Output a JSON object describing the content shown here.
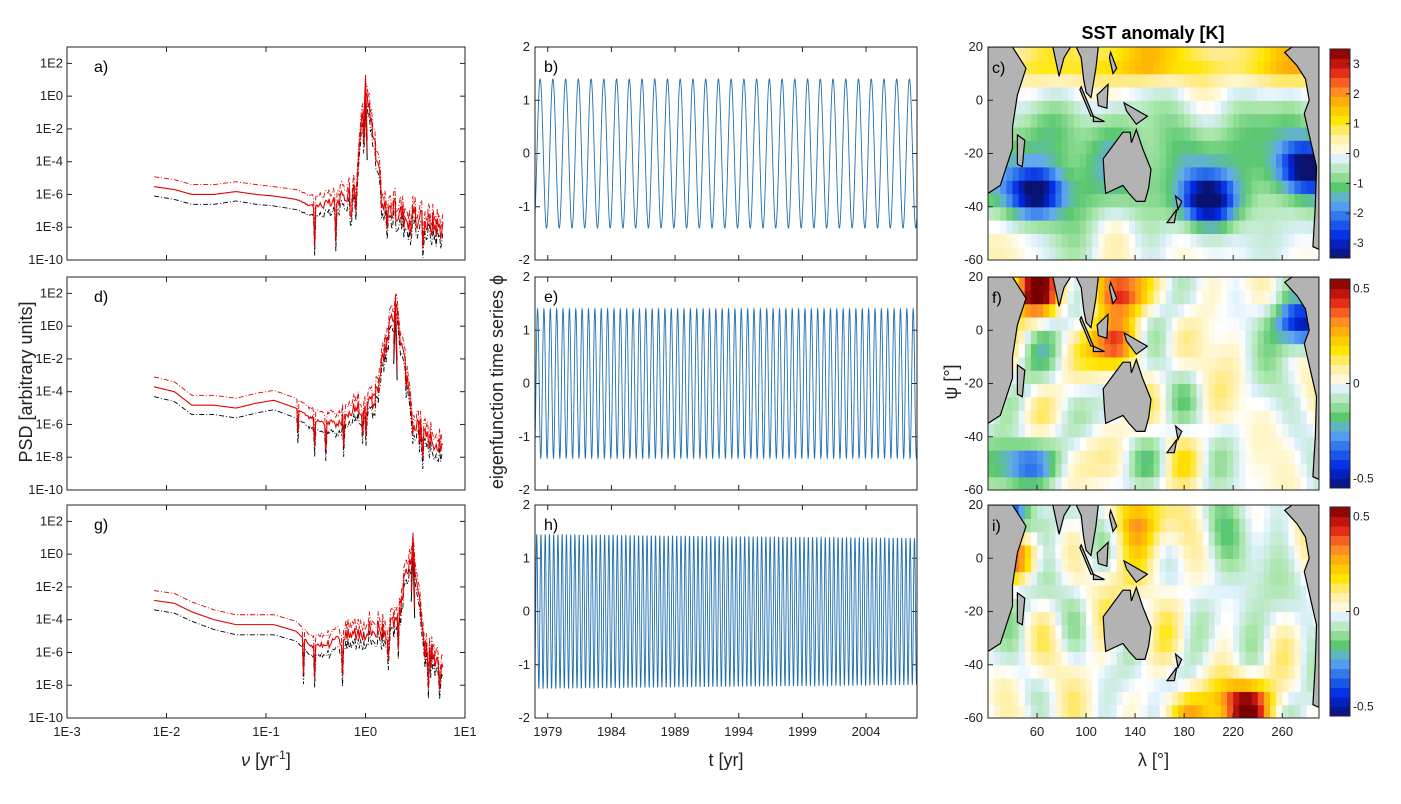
{
  "colors": {
    "psd_mean": "#000000",
    "psd_bounds": "#e00000",
    "timeseries": "#1f6fb0",
    "land": "#b3b3b3"
  },
  "chart_data": [
    {
      "id": "a",
      "type": "line",
      "panel_label": "a)",
      "xscale": "log",
      "yscale": "log",
      "xlim": [
        0.001,
        10
      ],
      "ylim": [
        1e-10,
        1000
      ],
      "xticks": [
        "1E-3",
        "1E-2",
        "1E-1",
        "1E0",
        "1E1"
      ],
      "yticks": [
        "1E-10",
        "1E-8",
        "1E-6",
        "1E-4",
        "1E-2",
        "1E0",
        "1E2"
      ],
      "peak_frequency": 1.0,
      "peak_psd": 5,
      "series": [
        {
          "name": "PSD",
          "x": [
            0.0075,
            0.012,
            0.018,
            0.03,
            0.05,
            0.08,
            0.12,
            0.2,
            0.3,
            0.5,
            0.8,
            1.0,
            1.5,
            2.5,
            4,
            6
          ],
          "y": [
            3e-06,
            2e-06,
            1e-06,
            1e-06,
            1.5e-06,
            1e-06,
            8e-07,
            5e-07,
            2e-07,
            3e-07,
            3e-06,
            5,
            2e-07,
            5e-08,
            2e-08,
            1e-08
          ]
        },
        {
          "name": "upper bound",
          "x": [
            0.0075,
            0.012,
            0.018,
            0.03,
            0.05,
            0.08,
            0.12,
            0.2,
            0.3,
            0.5,
            0.8,
            1.0,
            1.5,
            2.5,
            4,
            6
          ],
          "y": [
            1.2e-05,
            8e-06,
            4e-06,
            4e-06,
            6e-06,
            4e-06,
            3e-06,
            2e-06,
            8e-07,
            1.2e-06,
            1.2e-05,
            20,
            8e-07,
            2e-07,
            8e-08,
            4e-08
          ]
        },
        {
          "name": "lower bound",
          "x": [
            0.0075,
            0.012,
            0.018,
            0.03,
            0.05,
            0.08,
            0.12,
            0.2,
            0.3,
            0.5,
            0.8,
            1.0,
            1.5,
            2.5,
            4,
            6
          ],
          "y": [
            8e-07,
            5e-07,
            2.5e-07,
            2.5e-07,
            4e-07,
            2.5e-07,
            2e-07,
            1.2e-07,
            5e-08,
            8e-08,
            8e-07,
            1.2,
            5e-08,
            1.2e-08,
            5e-09,
            2.5e-09
          ]
        }
      ]
    },
    {
      "id": "d",
      "type": "line",
      "panel_label": "d)",
      "xscale": "log",
      "yscale": "log",
      "xlim": [
        0.001,
        10
      ],
      "ylim": [
        1e-10,
        1000
      ],
      "xticks": [
        "1E-3",
        "1E-2",
        "1E-1",
        "1E0",
        "1E1"
      ],
      "yticks": [
        "1E-10",
        "1E-8",
        "1E-6",
        "1E-4",
        "1E-2",
        "1E0",
        "1E2"
      ],
      "peak_frequency": 2.0,
      "peak_psd": 20,
      "series": [
        {
          "name": "PSD",
          "x": [
            0.0075,
            0.012,
            0.018,
            0.03,
            0.05,
            0.08,
            0.12,
            0.2,
            0.3,
            0.5,
            0.8,
            1.2,
            2.0,
            3,
            4,
            6
          ],
          "y": [
            0.0002,
            0.0001,
            1.5e-05,
            1.5e-05,
            1e-05,
            2e-05,
            3e-05,
            1e-05,
            2e-06,
            1e-06,
            1e-05,
            2e-05,
            20,
            1e-06,
            2e-07,
            1e-07
          ]
        },
        {
          "name": "upper bound",
          "x": [
            0.0075,
            0.012,
            0.018,
            0.03,
            0.05,
            0.08,
            0.12,
            0.2,
            0.3,
            0.5,
            0.8,
            1.2,
            2.0,
            3,
            4,
            6
          ],
          "y": [
            0.0008,
            0.0004,
            6e-05,
            6e-05,
            4e-05,
            8e-05,
            0.00012,
            4e-05,
            8e-06,
            4e-06,
            4e-05,
            8e-05,
            80,
            4e-06,
            8e-07,
            4e-07
          ]
        },
        {
          "name": "lower bound",
          "x": [
            0.0075,
            0.012,
            0.018,
            0.03,
            0.05,
            0.08,
            0.12,
            0.2,
            0.3,
            0.5,
            0.8,
            1.2,
            2.0,
            3,
            4,
            6
          ],
          "y": [
            5e-05,
            2.5e-05,
            4e-06,
            4e-06,
            2.5e-06,
            5e-06,
            8e-06,
            2.5e-06,
            5e-07,
            2.5e-07,
            2.5e-06,
            5e-06,
            5,
            2.5e-07,
            5e-08,
            2.5e-08
          ]
        }
      ]
    },
    {
      "id": "g",
      "type": "line",
      "panel_label": "g)",
      "xscale": "log",
      "yscale": "log",
      "xlim": [
        0.001,
        10
      ],
      "ylim": [
        1e-10,
        1000
      ],
      "xticks": [
        "1E-3",
        "1E-2",
        "1E-1",
        "1E0",
        "1E1"
      ],
      "yticks": [
        "1E-10",
        "1E-8",
        "1E-6",
        "1E-4",
        "1E-2",
        "1E0",
        "1E2"
      ],
      "xlabel": "ν [yr⁻¹]",
      "peak_frequency": 3.0,
      "peak_psd": 5,
      "series": [
        {
          "name": "PSD",
          "x": [
            0.0075,
            0.012,
            0.018,
            0.03,
            0.05,
            0.08,
            0.12,
            0.2,
            0.3,
            0.5,
            0.8,
            1.2,
            2.0,
            3.0,
            4,
            6
          ],
          "y": [
            0.0015,
            0.001,
            0.0003,
            0.0001,
            5e-05,
            5e-05,
            5e-05,
            2e-05,
            2e-06,
            5e-06,
            2e-05,
            3e-05,
            3e-05,
            5,
            1e-06,
            1e-07
          ]
        },
        {
          "name": "upper bound",
          "x": [
            0.0075,
            0.012,
            0.018,
            0.03,
            0.05,
            0.08,
            0.12,
            0.2,
            0.3,
            0.5,
            0.8,
            1.2,
            2.0,
            3.0,
            4,
            6
          ],
          "y": [
            0.006,
            0.004,
            0.0012,
            0.0004,
            0.0002,
            0.0002,
            0.0002,
            8e-05,
            8e-06,
            2e-05,
            8e-05,
            0.00012,
            0.00012,
            20,
            4e-06,
            4e-07
          ]
        },
        {
          "name": "lower bound",
          "x": [
            0.0075,
            0.012,
            0.018,
            0.03,
            0.05,
            0.08,
            0.12,
            0.2,
            0.3,
            0.5,
            0.8,
            1.2,
            2.0,
            3.0,
            4,
            6
          ],
          "y": [
            0.0004,
            0.00025,
            8e-05,
            2.5e-05,
            1.2e-05,
            1.2e-05,
            1.2e-05,
            5e-06,
            5e-07,
            1.2e-06,
            5e-06,
            8e-06,
            8e-06,
            1.2,
            2.5e-07,
            2.5e-08
          ]
        }
      ]
    },
    {
      "id": "b",
      "type": "line",
      "panel_label": "b)",
      "xlim": [
        1978,
        2008
      ],
      "ylim": [
        -2,
        2
      ],
      "yticks": [
        "-2",
        "-1",
        "0",
        "1",
        "2"
      ],
      "amplitude": 1.4,
      "period_years": 1.0,
      "phase": 0.0,
      "decay": 0.0
    },
    {
      "id": "e",
      "type": "line",
      "panel_label": "e)",
      "xlim": [
        1978,
        2008
      ],
      "ylim": [
        -2,
        2
      ],
      "yticks": [
        "-2",
        "-1",
        "0",
        "1",
        "2"
      ],
      "amplitude": 1.4,
      "period_years": 0.5,
      "phase": 0.0,
      "decay": 0.0
    },
    {
      "id": "h",
      "type": "line",
      "panel_label": "h)",
      "xlim": [
        1978,
        2008
      ],
      "ylim": [
        -2,
        2
      ],
      "yticks": [
        "-2",
        "-1",
        "0",
        "1",
        "2"
      ],
      "xticks": [
        "1979",
        "1984",
        "1989",
        "1994",
        "1999",
        "2004"
      ],
      "xlabel": "t [yr]",
      "amplitude": 1.45,
      "period_years": 0.3333,
      "phase": 0.0,
      "decay": 0.05
    },
    {
      "id": "c",
      "type": "heatmap",
      "panel_label": "c)",
      "xlim": [
        20,
        290
      ],
      "ylim": [
        -60,
        20
      ],
      "yticks": [
        "-60",
        "-40",
        "-20",
        "0",
        "20"
      ],
      "colorbar_range": [
        -3.5,
        3.5
      ],
      "colorbar_ticks": [
        "-3",
        "-2",
        "-1",
        "0",
        "1",
        "2",
        "3"
      ],
      "features": [
        {
          "lon": 60,
          "lat": -35,
          "value": -3.0
        },
        {
          "lon": 200,
          "lat": -38,
          "value": -3.0
        },
        {
          "lon": 280,
          "lat": -25,
          "value": -2.8
        },
        {
          "lon": 150,
          "lat": 15,
          "value": 1.3
        },
        {
          "lon": 270,
          "lat": 15,
          "value": 1.0
        }
      ]
    },
    {
      "id": "f",
      "type": "heatmap",
      "panel_label": "f)",
      "xlim": [
        20,
        290
      ],
      "ylim": [
        -60,
        20
      ],
      "yticks": [
        "-60",
        "-40",
        "-20",
        "0",
        "20"
      ],
      "ylabel": "ψ [°]",
      "colorbar_range": [
        -0.55,
        0.55
      ],
      "colorbar_ticks": [
        "-0.5",
        "0",
        "0.5"
      ],
      "features": [
        {
          "lon": 60,
          "lat": 15,
          "value": 0.5
        },
        {
          "lon": 128,
          "lat": 15,
          "value": 0.4
        },
        {
          "lon": 125,
          "lat": -5,
          "value": 0.35
        },
        {
          "lon": 275,
          "lat": 3,
          "value": -0.5
        },
        {
          "lon": 45,
          "lat": -50,
          "value": -0.4
        }
      ]
    },
    {
      "id": "i",
      "type": "heatmap",
      "panel_label": "i)",
      "xlim": [
        20,
        290
      ],
      "ylim": [
        -60,
        20
      ],
      "yticks": [
        "-60",
        "-40",
        "-20",
        "0",
        "20"
      ],
      "xticks": [
        "60",
        "100",
        "140",
        "180",
        "220",
        "260"
      ],
      "xlabel": "λ [°]",
      "colorbar_range": [
        -0.55,
        0.55
      ],
      "colorbar_ticks": [
        "-0.5",
        "0",
        "0.5"
      ],
      "features": [
        {
          "lon": 45,
          "lat": 0,
          "value": 0.35
        },
        {
          "lon": 230,
          "lat": -55,
          "value": 0.45
        },
        {
          "lon": 175,
          "lat": -58,
          "value": 0.3
        },
        {
          "lon": 35,
          "lat": 17,
          "value": -0.45
        },
        {
          "lon": 140,
          "lat": 15,
          "value": 0.2
        }
      ]
    }
  ],
  "labels": {
    "psd_ylabel": "PSD [arbitrary units]",
    "ts_ylabel": "eigenfunction time series ϕ",
    "map_title": "SST anomaly [K]"
  }
}
